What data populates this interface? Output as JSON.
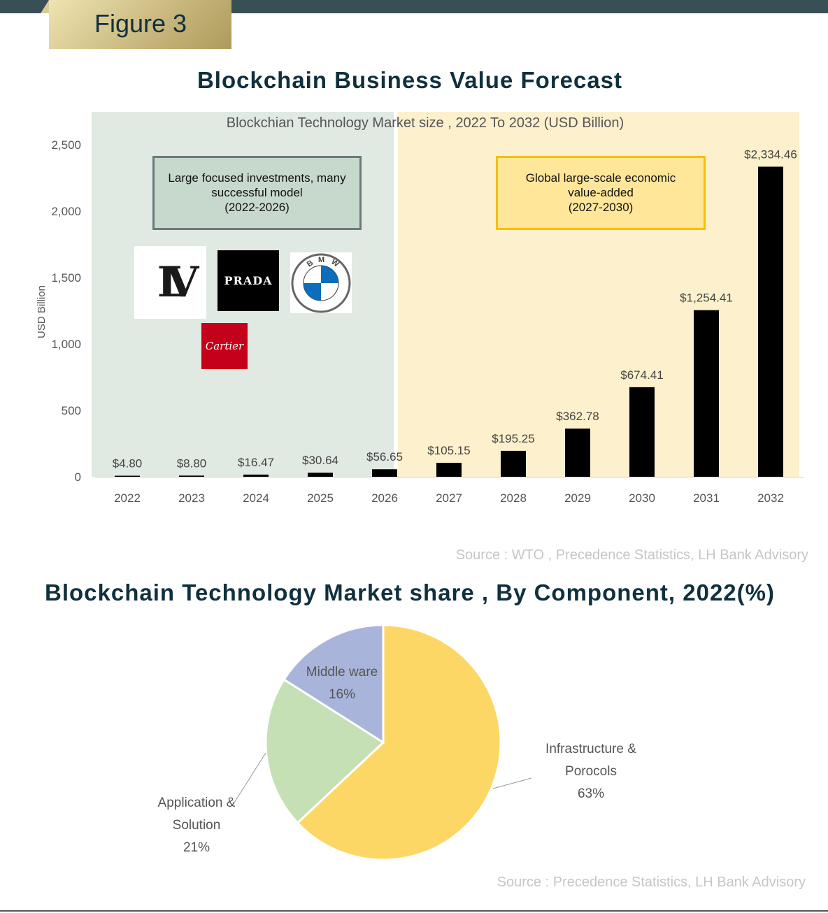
{
  "figure_label": "Figure 3",
  "bar_section": {
    "title": "Blockchain Business Value Forecast",
    "source": "Source : WTO , Precedence Statistics, LH Bank Advisory",
    "annotations": [
      {
        "text_lines": [
          "Large focused investments, many",
          "successful model",
          "(2022-2026)"
        ]
      },
      {
        "text_lines": [
          "Global large-scale economic",
          "value-added",
          "(2027-2030)"
        ]
      }
    ],
    "logos": [
      "LV",
      "PRADA",
      "BMW",
      "Cartier"
    ]
  },
  "pie_section": {
    "title": "Blockchain Technology Market share , By Component, 2022(%)",
    "source": "Source : Precedence Statistics, LH Bank Advisory"
  },
  "colors": {
    "green_zone": "#e0e9e2",
    "yellow_zone": "#fdf0cc",
    "bar": "#000000",
    "infra": "#fdd766",
    "app": "#c5e0b4",
    "middle": "#a9b4da"
  },
  "chart_data": [
    {
      "type": "bar",
      "title": "Blockchian Technology Market size , 2022 To 2032 (USD Billion)",
      "xlabel": "",
      "ylabel": "USD Billion",
      "ylim": [
        0,
        2500
      ],
      "yticks": [
        "0",
        "500",
        "1,000",
        "1,500",
        "2,000",
        "2,500"
      ],
      "ytick_values": [
        0,
        500,
        1000,
        1500,
        2000,
        2500
      ],
      "categories": [
        "2022",
        "2023",
        "2024",
        "2025",
        "2026",
        "2027",
        "2028",
        "2029",
        "2030",
        "2031",
        "2032"
      ],
      "values": [
        4.8,
        8.8,
        16.47,
        30.64,
        56.65,
        105.15,
        195.25,
        362.78,
        674.41,
        1254.41,
        2334.46
      ],
      "data_labels": [
        "$4.80",
        "$8.80",
        "$16.47",
        "$30.64",
        "$56.65",
        "$105.15",
        "$195.25",
        "$362.78",
        "$674.41",
        "$1,254.41",
        "$2,334.46"
      ],
      "grid": false
    },
    {
      "type": "pie",
      "slices": [
        {
          "label_lines": [
            "Infrastructure &",
            "Porocols"
          ],
          "pct_label": "63%",
          "value": 63
        },
        {
          "label_lines": [
            "Application &",
            "Solution"
          ],
          "pct_label": "21%",
          "value": 21
        },
        {
          "label_lines": [
            "Middle ware"
          ],
          "pct_label": "16%",
          "value": 16
        }
      ]
    }
  ]
}
